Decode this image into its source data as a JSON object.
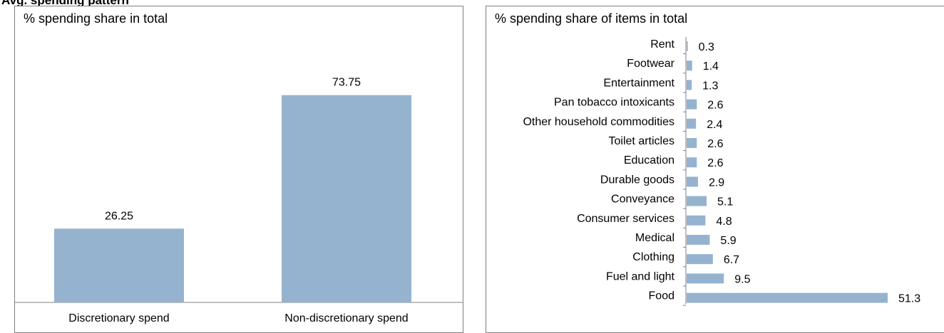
{
  "page_title": "Avg. spending pattern",
  "charts": {
    "left": {
      "title": "% spending share in total"
    },
    "right": {
      "title": "% spending share of items in total"
    }
  },
  "bar_color": "#95B3CF",
  "chart_data": [
    {
      "type": "bar",
      "title": "% spending share in total",
      "categories": [
        "Discretionary spend",
        "Non-discretionary spend"
      ],
      "values": [
        26.25,
        73.75
      ],
      "ylim": [
        0,
        100
      ],
      "data_labels": [
        "26.25",
        "73.75"
      ],
      "grid": false,
      "legend": "none"
    },
    {
      "type": "bar",
      "orientation": "horizontal",
      "title": "% spending share of items in total",
      "categories": [
        "Rent",
        "Footwear",
        "Entertainment",
        "Pan tobacco intoxicants",
        "Other household commodities",
        "Toilet articles",
        "Education",
        "Durable goods",
        "Conveyance",
        "Consumer services",
        "Medical",
        "Clothing",
        "Fuel and light",
        "Food"
      ],
      "values": [
        0.3,
        1.4,
        1.3,
        2.6,
        2.4,
        2.6,
        2.6,
        2.9,
        5.1,
        4.8,
        5.9,
        6.7,
        9.5,
        51.3
      ],
      "data_labels": [
        "0.3",
        "1.4",
        "1.3",
        "2.6",
        "2.4",
        "2.6",
        "2.6",
        "2.9",
        "5.1",
        "4.8",
        "5.9",
        "6.7",
        "9.5",
        "51.3"
      ],
      "xlim": [
        0,
        51.3
      ],
      "grid": false,
      "legend": "none"
    }
  ]
}
